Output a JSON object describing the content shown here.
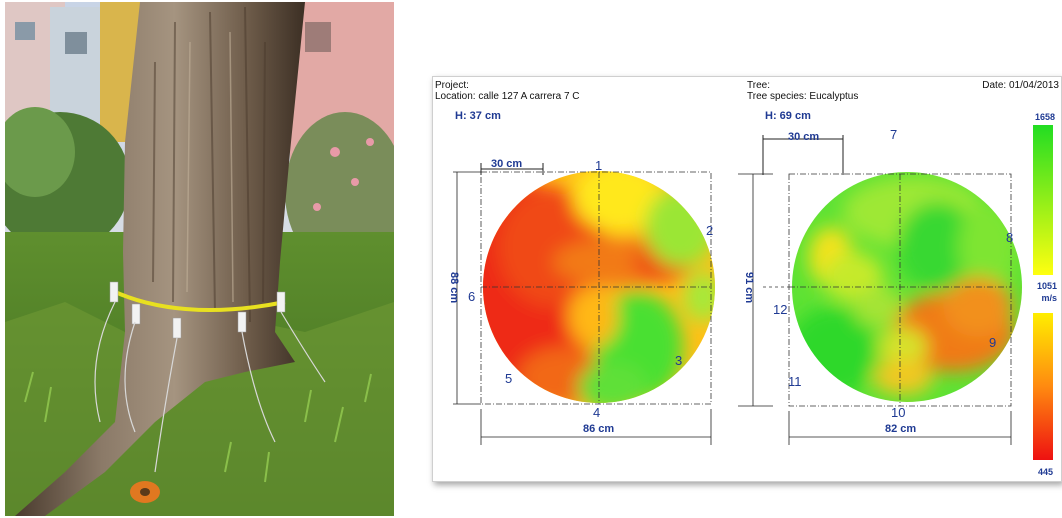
{
  "header": {
    "project_label": "Project:",
    "location": "Location: calle 127 A carrera 7 C",
    "tree_label": "Tree:",
    "tree_species": "Tree species: Eucalyptus",
    "date": "Date: 01/04/2013"
  },
  "left_tomogram": {
    "height_label": "H: 37 cm",
    "scale_label": "30 cm",
    "width_label": "86 cm",
    "depth_label": "88 cm",
    "sensors": [
      "1",
      "2",
      "3",
      "4",
      "5",
      "6"
    ]
  },
  "right_tomogram": {
    "height_label": "H: 69 cm",
    "scale_label": "30 cm",
    "width_label": "82 cm",
    "depth_label": "91 cm",
    "sensors": [
      "7",
      "8",
      "9",
      "10",
      "11",
      "12"
    ]
  },
  "color_scale": {
    "max": "1658",
    "mid": "1051",
    "unit": "m/s",
    "min": "445",
    "colors": {
      "high": "#22dd22",
      "mid": "#ffff00",
      "low": "#ee1111"
    }
  }
}
